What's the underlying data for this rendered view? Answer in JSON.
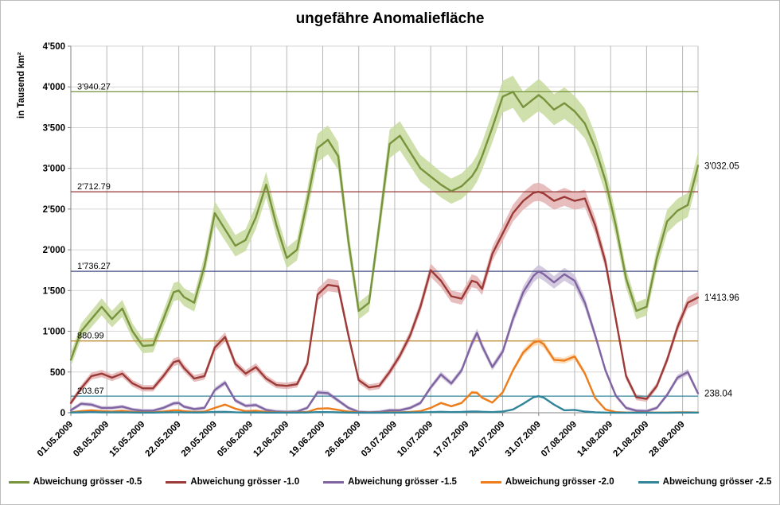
{
  "title": "ungefähre Anomaliefläche",
  "y_axis": {
    "label": "in Tausend  km²",
    "min": 0,
    "max": 4500,
    "step": 500,
    "tick_labels": [
      "0",
      "500",
      "1'000",
      "1'500",
      "2'000",
      "2'500",
      "3'000",
      "3'500",
      "4'000",
      "4'500"
    ]
  },
  "x_axis": {
    "tick_days": [
      0,
      7,
      14,
      21,
      28,
      35,
      42,
      49,
      56,
      63,
      70,
      77,
      84,
      91,
      98,
      105,
      112,
      119
    ],
    "tick_labels": [
      "01.05.2009",
      "08.05.2009",
      "15.05.2009",
      "22.05.2009",
      "29.05.2009",
      "05.06.2009",
      "12.06.2009",
      "19.06.2009",
      "26.06.2009",
      "03.07.2009",
      "10.07.2009",
      "17.07.2009",
      "24.07.2009",
      "31.07.2009",
      "07.08.2009",
      "14.08.2009",
      "21.08.2009",
      "28.08.2009"
    ],
    "total_days": 122
  },
  "chart_data": {
    "type": "line",
    "title": "ungefähre Anomaliefläche",
    "ylabel": "in Tausend km²",
    "ylim": [
      0,
      4500
    ],
    "grid": true,
    "legend_position": "bottom",
    "x_days": [
      0,
      2,
      4,
      6,
      8,
      10,
      12,
      14,
      16,
      18,
      20,
      21,
      22,
      24,
      26,
      28,
      30,
      32,
      34,
      36,
      38,
      40,
      42,
      44,
      46,
      48,
      50,
      52,
      54,
      56,
      58,
      60,
      62,
      64,
      66,
      68,
      70,
      72,
      74,
      76,
      78,
      79,
      80,
      82,
      84,
      86,
      88,
      90,
      91,
      92,
      94,
      96,
      98,
      100,
      102,
      104,
      106,
      108,
      110,
      112,
      114,
      116,
      118,
      120,
      122
    ],
    "series": [
      {
        "name": "Abweichung grösser -0.5",
        "color": "#77933C",
        "band_color": "#C8DA9F",
        "band": {
          "base": 60,
          "scale": 0.035
        },
        "max_line": {
          "value": 3940.27,
          "label": "3'940.27",
          "color": "#77933C"
        },
        "end_label": {
          "value": 3032.05,
          "text": "3'032.05"
        },
        "values": [
          650,
          1000,
          1150,
          1300,
          1150,
          1280,
          1000,
          820,
          830,
          1150,
          1480,
          1500,
          1420,
          1350,
          1800,
          2450,
          2250,
          2050,
          2120,
          2400,
          2800,
          2300,
          1900,
          2000,
          2600,
          3250,
          3350,
          3150,
          2100,
          1250,
          1350,
          2300,
          3300,
          3400,
          3200,
          3000,
          2900,
          2800,
          2720,
          2780,
          2900,
          3000,
          3150,
          3500,
          3880,
          3940,
          3750,
          3850,
          3900,
          3850,
          3720,
          3800,
          3700,
          3550,
          3250,
          2850,
          2300,
          1650,
          1250,
          1300,
          1900,
          2350,
          2480,
          2550,
          3032
        ]
      },
      {
        "name": "Abweichung grösser -1.0",
        "color": "#9C3A38",
        "band_color": "#E3B2B1",
        "band": {
          "base": 30,
          "scale": 0.03
        },
        "max_line": {
          "value": 2712.79,
          "label": "2'712.79",
          "color": "#953735"
        },
        "end_label": {
          "value": 1413.96,
          "text": "1'413.96"
        },
        "values": [
          120,
          300,
          450,
          480,
          430,
          480,
          360,
          300,
          300,
          450,
          620,
          640,
          550,
          420,
          450,
          800,
          930,
          600,
          480,
          560,
          420,
          340,
          330,
          350,
          600,
          1450,
          1570,
          1550,
          950,
          400,
          310,
          330,
          500,
          700,
          950,
          1300,
          1750,
          1620,
          1430,
          1400,
          1620,
          1600,
          1520,
          1950,
          2200,
          2450,
          2600,
          2700,
          2713,
          2690,
          2600,
          2650,
          2600,
          2630,
          2300,
          1850,
          1150,
          450,
          190,
          170,
          330,
          650,
          1050,
          1350,
          1414
        ]
      },
      {
        "name": "Abweichung grösser -1.5",
        "color": "#8064A2",
        "band_color": "#CCC1DA",
        "band": {
          "base": 20,
          "scale": 0.035
        },
        "max_line": {
          "value": 1736.27,
          "label": "1'736.27",
          "color": "#474E86"
        },
        "end_label": {
          "value": 238.04,
          "text": "238.04"
        },
        "values": [
          30,
          110,
          100,
          60,
          60,
          75,
          40,
          25,
          25,
          60,
          115,
          120,
          75,
          45,
          60,
          280,
          370,
          150,
          85,
          95,
          35,
          15,
          10,
          15,
          60,
          250,
          240,
          150,
          60,
          10,
          5,
          10,
          30,
          30,
          60,
          120,
          310,
          470,
          360,
          520,
          850,
          980,
          820,
          560,
          750,
          1150,
          1480,
          1680,
          1736,
          1700,
          1600,
          1700,
          1620,
          1350,
          950,
          520,
          210,
          60,
          25,
          20,
          60,
          220,
          430,
          500,
          238
        ]
      },
      {
        "name": "Abweichung grösser -2.0",
        "color": "#ED7D1C",
        "band_color": "#FAD5AB",
        "band": {
          "base": 10,
          "scale": 0.04
        },
        "max_line": {
          "value": 880.99,
          "label": "880.99",
          "color": "#BD8428"
        },
        "end_label": null,
        "values": [
          5,
          20,
          30,
          20,
          15,
          25,
          10,
          5,
          5,
          15,
          30,
          30,
          20,
          10,
          15,
          60,
          100,
          50,
          20,
          25,
          10,
          5,
          5,
          5,
          10,
          50,
          55,
          35,
          15,
          3,
          2,
          3,
          5,
          5,
          10,
          20,
          60,
          120,
          80,
          120,
          250,
          245,
          185,
          125,
          250,
          520,
          740,
          860,
          881,
          840,
          650,
          640,
          690,
          480,
          180,
          40,
          8,
          3,
          2,
          2,
          2,
          3,
          5,
          5,
          3
        ]
      },
      {
        "name": "Abweichung grösser -2.5",
        "color": "#31859B",
        "band_color": "#B7DEE8",
        "band": {
          "base": 4,
          "scale": 0.05
        },
        "max_line": {
          "value": 203.67,
          "label": "203.67",
          "color": "#31859B"
        },
        "end_label": null,
        "values": [
          3,
          5,
          8,
          5,
          4,
          6,
          3,
          2,
          2,
          4,
          6,
          6,
          4,
          3,
          4,
          10,
          12,
          6,
          3,
          4,
          2,
          2,
          2,
          2,
          3,
          8,
          8,
          5,
          2,
          1,
          1,
          1,
          2,
          2,
          3,
          4,
          8,
          12,
          8,
          10,
          15,
          15,
          12,
          8,
          15,
          40,
          110,
          190,
          204,
          185,
          100,
          30,
          35,
          15,
          5,
          2,
          1,
          1,
          1,
          1,
          1,
          1,
          2,
          2,
          2
        ]
      }
    ]
  },
  "legend": {
    "items": [
      {
        "label": "Abweichung grösser -0.5",
        "color": "#77933C"
      },
      {
        "label": "Abweichung grösser -1.0",
        "color": "#9C3A38"
      },
      {
        "label": "Abweichung grösser -1.5",
        "color": "#8064A2"
      },
      {
        "label": "Abweichung grösser -2.0",
        "color": "#ED7D1C"
      },
      {
        "label": "Abweichung grösser -2.5",
        "color": "#31859B"
      }
    ]
  },
  "colors": {
    "h_gridline": "#d6d6d6",
    "v_gridline": "#b8b8b8",
    "axis": "#808080"
  }
}
